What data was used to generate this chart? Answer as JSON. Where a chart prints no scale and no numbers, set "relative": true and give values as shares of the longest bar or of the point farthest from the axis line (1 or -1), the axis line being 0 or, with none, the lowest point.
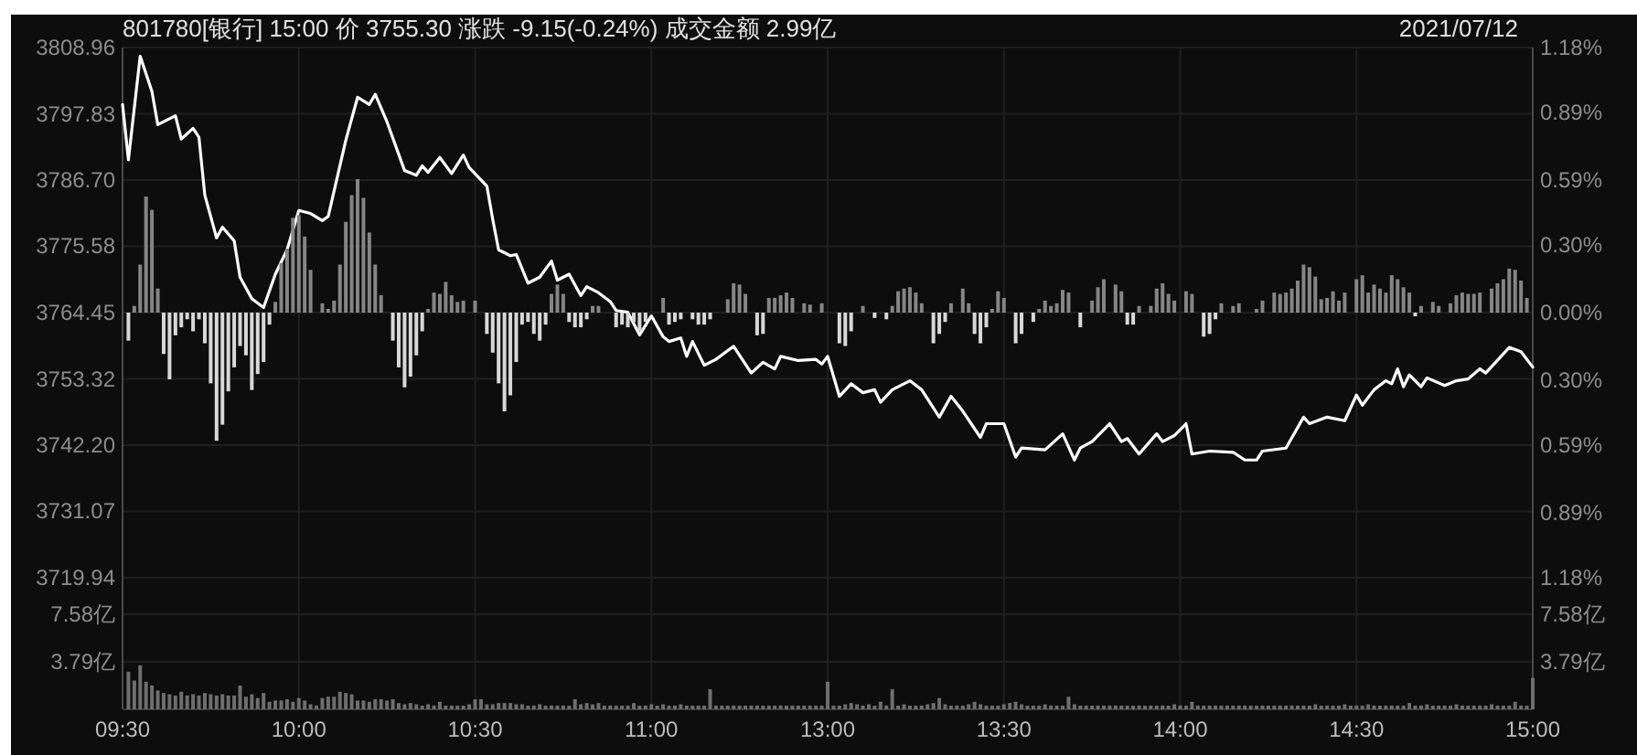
{
  "chart_data": [
    {
      "type": "line",
      "title": "801780[银行] 15:00  价 3755.30  涨跌 -9.15(-0.24%)  成交金额 2.99亿",
      "annotations": [
        "2021/07/12"
      ],
      "tick_labels": "y",
      "grid": "y",
      "categories": [
        null,
        null,
        null,
        null,
        null,
        null,
        null,
        null,
        null,
        null,
        null,
        null,
        null,
        null,
        null,
        null,
        null,
        null,
        null,
        null,
        null,
        null,
        null,
        null,
        null,
        null,
        null,
        null,
        null,
        null,
        null,
        null,
        null,
        null,
        null,
        null,
        null,
        null,
        null,
        null,
        null,
        null,
        null,
        null,
        null,
        null,
        null,
        null,
        null,
        null,
        null,
        null,
        null,
        null,
        null,
        null,
        null,
        null,
        null,
        null,
        null,
        null,
        null,
        null,
        null,
        null,
        null,
        null,
        null,
        null,
        null,
        null,
        null,
        null,
        null,
        null,
        null,
        null,
        null,
        null,
        null,
        null,
        null,
        null,
        null,
        null,
        null,
        null,
        null,
        null,
        null,
        null,
        null,
        null,
        null,
        null,
        null,
        null,
        null,
        null,
        null,
        null,
        null,
        null,
        null,
        null,
        null,
        null,
        null,
        null,
        null,
        null,
        null,
        null,
        null,
        null,
        null,
        null,
        null,
        null,
        null,
        null,
        null,
        null,
        null,
        null,
        null,
        null,
        null,
        null,
        null,
        null,
        null,
        null,
        null,
        null,
        null,
        null,
        null,
        null,
        null,
        null,
        null,
        null,
        null,
        null,
        null,
        null,
        null,
        null,
        null,
        null,
        null,
        null,
        null,
        null,
        null,
        null,
        null,
        null,
        null,
        null,
        null,
        null,
        null,
        null,
        null,
        null,
        null,
        null,
        null,
        null,
        null,
        null,
        null,
        null,
        null,
        null,
        null,
        null,
        null,
        null,
        null,
        null,
        null,
        null,
        null,
        null,
        null,
        null,
        null,
        null,
        null,
        null,
        null,
        null,
        null,
        null,
        null,
        null,
        null,
        null,
        null,
        null,
        null,
        null,
        null,
        null,
        null,
        null,
        null,
        null,
        null,
        null,
        null,
        null,
        null,
        null,
        null,
        null,
        null,
        null,
        null,
        null,
        null,
        null,
        null,
        null,
        null,
        null,
        null,
        null,
        null,
        null,
        null,
        null,
        null,
        null,
        null,
        null,
        null
      ],
      "ylim": [
        3719.94,
        3808.96
      ],
      "yticks": [
        3808.96,
        3797.83,
        {
          "value": 3786.7,
          "label": "3786.70"
        },
        3775.58,
        3764.45,
        3753.32,
        {
          "value": 3742.2,
          "label": "3742.20"
        },
        3731.07,
        3719.94
      ],
      "y2lim": [
        -1.18,
        1.18
      ],
      "y2ticks": [
        {
          "value": 1.18,
          "label": "1.18%"
        },
        {
          "value": 0.89,
          "label": "0.89%"
        },
        {
          "value": 0.59,
          "label": "0.59%"
        },
        {
          "value": 0.3,
          "label": "0.30%"
        },
        {
          "value": 0,
          "label": "0.00%"
        },
        {
          "value": -0.3,
          "label": "0.30%"
        },
        {
          "value": -0.59,
          "label": "0.59%"
        },
        {
          "value": -0.89,
          "label": "0.89%"
        },
        {
          "value": -1.18,
          "label": "1.18%"
        }
      ],
      "series": [
        {
          "color": "#ffffff",
          "values": [
            3799.4,
            3790.1,
            null,
            3807.5,
            null,
            3801.6,
            3796.0,
            null,
            3797.0,
            3797.5,
            3793.6,
            null,
            3795.4,
            3793.9,
            3784.2,
            null,
            3777.0,
            3778.8,
            null,
            3776.5,
            3770.4,
            null,
            3766.8,
            null,
            3765.3,
            null,
            3770.9,
            null,
            3775.0,
            null,
            3781.6,
            null,
            3781.1,
            null,
            3779.9,
            3780.6,
            null,
            null,
            3793.4,
            null,
            3800.6,
            null,
            3799.4,
            3801.1,
            null,
            3796.5,
            null,
            null,
            3788.3,
            null,
            3787.5,
            3789.1,
            3788.0,
            null,
            3790.5,
            null,
            3787.8,
            null,
            3790.9,
            3788.8,
            null,
            null,
            3785.7,
            3780.1,
            3775.0,
            null,
            3774.0,
            3774.2,
            null,
            3769.4,
            null,
            3770.4,
            null,
            3773.1,
            3769.9,
            null,
            3770.9,
            null,
            3767.3,
            3768.8,
            null,
            3767.8,
            null,
            3766.3,
            3764.8,
            null,
            3764.5,
            null,
            3760.7,
            null,
            3763.9,
            null,
            3760.4,
            3759.6,
            null,
            3760.2,
            3757.1,
            3759.6,
            null,
            3755.6,
            null,
            3756.6,
            null,
            null,
            3758.8,
            null,
            null,
            3754.3,
            null,
            3756.1,
            null,
            3755.0,
            3757.1,
            null,
            null,
            3756.4,
            null,
            null,
            3756.6,
            3755.8,
            3757.1,
            null,
            3750.4,
            null,
            3752.5,
            null,
            3751.0,
            null,
            3751.5,
            3749.4,
            null,
            3751.5,
            null,
            3752.5,
            3753.0,
            null,
            3751.5,
            null,
            null,
            3746.9,
            null,
            3750.4,
            null,
            3747.9,
            null,
            null,
            3743.5,
            3745.8,
            null,
            null,
            3745.8,
            null,
            3740.2,
            3741.7,
            null,
            null,
            null,
            3741.4,
            null,
            null,
            3744.1,
            null,
            3739.7,
            3741.7,
            null,
            3742.8,
            null,
            null,
            3745.8,
            null,
            3742.8,
            3743.3,
            null,
            3740.7,
            null,
            null,
            3744.1,
            3742.8,
            null,
            3743.8,
            null,
            3745.8,
            3740.7,
            null,
            null,
            3741.2,
            null,
            null,
            null,
            3741.0,
            null,
            3739.7,
            null,
            3739.7,
            3741.2,
            null,
            null,
            null,
            3741.7,
            null,
            null,
            3746.9,
            3745.8,
            null,
            null,
            3746.9,
            null,
            null,
            3746.3,
            null,
            3750.6,
            3748.9,
            null,
            3751.5,
            null,
            3753.0,
            3752.5,
            3755.0,
            3752.0,
            3754.0,
            null,
            3752.0,
            3753.5,
            null,
            null,
            3752.2,
            null,
            3753.0,
            null,
            3753.3,
            null,
            3755.0,
            3754.3,
            null,
            null,
            null,
            3758.6,
            null,
            3757.9,
            null,
            3755.3
          ]
        }
      ]
    },
    {
      "type": "bar",
      "relative": true,
      "tick_labels": false,
      "categories": [
        null,
        null,
        null,
        null,
        null,
        null,
        null,
        null,
        null,
        null,
        null,
        null,
        null,
        null,
        null,
        null,
        null,
        null,
        null,
        null,
        null,
        null,
        null,
        null,
        null,
        null,
        null,
        null,
        null,
        null,
        null,
        null,
        null,
        null,
        null,
        null,
        null,
        null,
        null,
        null,
        null,
        null,
        null,
        null,
        null,
        null,
        null,
        null,
        null,
        null,
        null,
        null,
        null,
        null,
        null,
        null,
        null,
        null,
        null,
        null,
        null,
        null,
        null,
        null,
        null,
        null,
        null,
        null,
        null,
        null,
        null,
        null,
        null,
        null,
        null,
        null,
        null,
        null,
        null,
        null,
        null,
        null,
        null,
        null,
        null,
        null,
        null,
        null,
        null,
        null,
        null,
        null,
        null,
        null,
        null,
        null,
        null,
        null,
        null,
        null,
        null,
        null,
        null,
        null,
        null,
        null,
        null,
        null,
        null,
        null,
        null,
        null,
        null,
        null,
        null,
        null,
        null,
        null,
        null,
        null,
        null,
        null,
        null,
        null,
        null,
        null,
        null,
        null,
        null,
        null,
        null,
        null,
        null,
        null,
        null,
        null,
        null,
        null,
        null,
        null,
        null,
        null,
        null,
        null,
        null,
        null,
        null,
        null,
        null,
        null,
        null,
        null,
        null,
        null,
        null,
        null,
        null,
        null,
        null,
        null,
        null,
        null,
        null,
        null,
        null,
        null,
        null,
        null,
        null,
        null,
        null,
        null,
        null,
        null,
        null,
        null,
        null,
        null,
        null,
        null,
        null,
        null,
        null,
        null,
        null,
        null,
        null,
        null,
        null,
        null,
        null,
        null,
        null,
        null,
        null,
        null,
        null,
        null,
        null,
        null,
        null,
        null,
        null,
        null,
        null,
        null,
        null,
        null,
        null,
        null,
        null,
        null,
        null,
        null,
        null,
        null,
        null,
        null,
        null,
        null,
        null,
        null,
        null,
        null,
        null,
        null,
        null,
        null,
        null,
        null,
        null,
        null,
        null,
        null,
        null,
        null,
        null,
        null,
        null,
        null,
        null
      ],
      "series": [
        {
          "color": "#858585",
          "values": [
            0,
            0,
            0.05,
            0.36,
            0.87,
            0.77,
            0.18,
            0,
            0,
            0,
            0,
            0,
            0,
            0,
            0,
            0,
            0,
            0,
            0,
            0,
            0,
            0,
            0,
            0,
            0,
            0,
            0.08,
            0.37,
            0.48,
            0.71,
            0.73,
            0.57,
            0.32,
            0,
            0.07,
            0.02,
            0.09,
            0.36,
            0.68,
            0.88,
            1,
            0.86,
            0.6,
            0.36,
            0.13,
            0,
            0,
            0,
            0,
            0,
            0,
            0,
            0.02,
            0.15,
            0.14,
            0.23,
            0.13,
            0.08,
            0.09,
            0,
            0.09,
            0,
            0,
            0,
            0,
            0,
            0,
            0,
            0,
            0,
            0,
            0,
            0,
            0.14,
            0.21,
            0.14,
            0,
            0,
            0,
            0,
            0.05,
            0.05,
            0,
            0,
            0,
            0,
            0,
            0,
            0,
            0,
            0,
            0,
            0.11,
            0,
            0,
            0,
            0,
            0,
            0,
            0,
            0,
            0,
            0,
            0.1,
            0.22,
            0.21,
            0.14,
            0,
            0,
            0,
            0.11,
            0.11,
            0.13,
            0.15,
            0.11,
            0,
            0.07,
            0.06,
            0,
            0.07,
            0,
            0,
            0,
            0,
            0,
            0,
            0.05,
            0,
            0,
            0,
            0,
            0.05,
            0.16,
            0.18,
            0.19,
            0.15,
            0.07,
            0,
            0,
            0,
            0,
            0.07,
            0,
            0.18,
            0.07,
            0,
            0,
            0,
            0.02,
            0.16,
            0.11,
            0,
            0,
            0,
            0,
            0,
            0.02,
            0.09,
            0.05,
            0.07,
            0.17,
            0.15,
            0,
            0,
            0,
            0.09,
            0.19,
            0.25,
            0,
            0.21,
            0.16,
            0,
            0,
            0.05,
            0,
            0.05,
            0.18,
            0.22,
            0.14,
            0.09,
            0,
            0.16,
            0.14,
            0,
            0,
            0,
            0,
            0.07,
            0,
            0.05,
            0.07,
            0,
            0,
            0.02,
            0.09,
            0,
            0.15,
            0.14,
            0.15,
            0.18,
            0.24,
            0.36,
            0.34,
            0.27,
            0.1,
            0.11,
            0.16,
            0.09,
            0.15,
            0,
            0.25,
            0.28,
            0.15,
            0.21,
            0.18,
            0.15,
            0.28,
            0.25,
            0.19,
            0.15,
            0,
            0.05,
            0,
            0.08,
            0.05,
            0,
            0.07,
            0.13,
            0.15,
            0.14,
            0.14,
            0.15,
            0,
            0.18,
            0.22,
            0.25,
            0.33,
            0.32,
            0.24,
            0.11,
            0
          ]
        },
        {
          "color": "#d8d8d8",
          "values": [
            0,
            -0.21,
            0,
            0,
            0,
            0,
            0,
            -0.31,
            -0.5,
            -0.17,
            -0.11,
            -0.05,
            -0.14,
            -0.05,
            -0.23,
            -0.53,
            -0.96,
            -0.84,
            -0.59,
            -0.41,
            -0.25,
            -0.32,
            -0.58,
            -0.46,
            -0.37,
            -0.09,
            0,
            0,
            0,
            0,
            0,
            0,
            0,
            0,
            0,
            0,
            0,
            0,
            0,
            0,
            0,
            0,
            0,
            0,
            0,
            0,
            -0.21,
            -0.41,
            -0.56,
            -0.48,
            -0.32,
            -0.14,
            0,
            0,
            0,
            0,
            0,
            0,
            0,
            0,
            0,
            0,
            -0.16,
            -0.3,
            -0.53,
            -0.74,
            -0.62,
            -0.37,
            -0.09,
            -0.07,
            -0.16,
            -0.21,
            -0.09,
            0,
            0,
            0,
            -0.07,
            -0.11,
            -0.11,
            -0.05,
            0,
            0,
            0,
            0,
            -0.11,
            -0.09,
            -0.11,
            -0.07,
            -0.14,
            -0.07,
            0,
            0,
            0,
            -0.09,
            -0.07,
            -0.05,
            0,
            -0.05,
            -0.09,
            -0.09,
            -0.05,
            0,
            0,
            0,
            0,
            0,
            0,
            0,
            -0.17,
            -0.16,
            0,
            0,
            0,
            0,
            0,
            0,
            0,
            0,
            0,
            0,
            0,
            0,
            -0.23,
            -0.25,
            -0.14,
            0,
            0,
            0,
            -0.04,
            0,
            -0.05,
            0,
            0,
            0,
            0,
            0,
            0,
            0,
            -0.23,
            -0.16,
            -0.07,
            0,
            0,
            0,
            0,
            -0.16,
            -0.23,
            -0.11,
            0,
            0,
            0,
            0,
            -0.23,
            -0.16,
            0,
            -0.07,
            0,
            0,
            0,
            0,
            0,
            0,
            0,
            -0.11,
            0,
            0,
            0,
            0,
            0,
            0,
            0,
            -0.09,
            -0.09,
            0,
            0,
            0,
            0,
            0,
            0,
            0,
            0,
            0,
            0,
            0,
            -0.18,
            -0.16,
            -0.05,
            0,
            0,
            0,
            0,
            0,
            0,
            0,
            0,
            0,
            0,
            0,
            0,
            0,
            0,
            0,
            0,
            0,
            0,
            0,
            0,
            0,
            0,
            0,
            0,
            0,
            0,
            0,
            0,
            0,
            0,
            0,
            0,
            0,
            -0.02,
            0,
            0,
            0,
            0,
            0,
            0,
            0,
            0,
            0,
            0,
            0,
            0,
            0,
            0,
            0,
            0,
            0,
            0,
            0,
            0
          ]
        }
      ]
    },
    {
      "type": "bar",
      "grid": true,
      "categories": [
        "09:30",
        null,
        null,
        null,
        null,
        null,
        null,
        null,
        null,
        null,
        null,
        null,
        null,
        null,
        null,
        null,
        null,
        null,
        null,
        null,
        null,
        null,
        null,
        null,
        null,
        null,
        null,
        null,
        null,
        null,
        "10:00",
        null,
        null,
        null,
        null,
        null,
        null,
        null,
        null,
        null,
        null,
        null,
        null,
        null,
        null,
        null,
        null,
        null,
        null,
        null,
        null,
        null,
        null,
        null,
        null,
        null,
        null,
        null,
        null,
        null,
        "10:30",
        null,
        null,
        null,
        null,
        null,
        null,
        null,
        null,
        null,
        null,
        null,
        null,
        null,
        null,
        null,
        null,
        null,
        null,
        null,
        null,
        null,
        null,
        null,
        null,
        null,
        null,
        null,
        null,
        null,
        "11:00",
        null,
        null,
        null,
        null,
        null,
        null,
        null,
        null,
        null,
        null,
        null,
        null,
        null,
        null,
        null,
        null,
        null,
        null,
        null,
        null,
        null,
        null,
        null,
        null,
        null,
        null,
        null,
        null,
        null,
        "13:00",
        null,
        null,
        null,
        null,
        null,
        null,
        null,
        null,
        null,
        null,
        null,
        null,
        null,
        null,
        null,
        null,
        null,
        null,
        null,
        null,
        null,
        null,
        null,
        null,
        null,
        null,
        null,
        null,
        null,
        "13:30",
        null,
        null,
        null,
        null,
        null,
        null,
        null,
        null,
        null,
        null,
        null,
        null,
        null,
        null,
        null,
        null,
        null,
        null,
        null,
        null,
        null,
        null,
        null,
        null,
        null,
        null,
        null,
        null,
        null,
        "14:00",
        null,
        null,
        null,
        null,
        null,
        null,
        null,
        null,
        null,
        null,
        null,
        null,
        null,
        null,
        null,
        null,
        null,
        null,
        null,
        null,
        null,
        null,
        null,
        null,
        null,
        null,
        null,
        null,
        null,
        "14:30",
        null,
        null,
        null,
        null,
        null,
        null,
        null,
        null,
        null,
        null,
        null,
        null,
        null,
        null,
        null,
        null,
        null,
        null,
        null,
        null,
        null,
        null,
        null,
        null,
        null,
        null,
        null,
        null,
        null,
        "15:00"
      ],
      "ylim": [
        0,
        10.5
      ],
      "yticks": [
        {
          "value": 3.79,
          "label": "3.79亿"
        },
        {
          "value": 7.58,
          "label": "7.58亿"
        }
      ],
      "y2lim": [
        0,
        10.5
      ],
      "y2ticks": [
        {
          "value": 3.79,
          "label": "3.79亿"
        },
        {
          "value": 7.58,
          "label": "7.58亿"
        }
      ],
      "series": [
        {
          "color": "#6e6e6e",
          "values": [
            0,
            3.0,
            2.3,
            3.5,
            2.2,
            1.9,
            1.5,
            1.3,
            1.2,
            1.1,
            1.4,
            1.1,
            1.2,
            1.1,
            1.3,
            1.2,
            1.1,
            1.2,
            1.1,
            1.1,
            1.9,
            1.0,
            1.2,
            0.9,
            1.3,
            0.6,
            0.7,
            0.7,
            0.8,
            0.6,
            0.9,
            0.7,
            0.4,
            0.3,
            0.9,
            1.0,
            1.0,
            1.4,
            1.3,
            1.2,
            0.7,
            0.7,
            0.6,
            0.8,
            0.8,
            0.7,
            0.8,
            0.5,
            0.4,
            0.5,
            0.4,
            0.2,
            0.4,
            0.3,
            0.6,
            0.2,
            0.2,
            0.2,
            0.2,
            0.4,
            0.8,
            0.8,
            0.4,
            0.4,
            0.5,
            0.5,
            0.5,
            0.4,
            0.4,
            0.2,
            0.3,
            0.4,
            0.2,
            0.3,
            0.2,
            0.3,
            0.2,
            0.8,
            0.4,
            0.5,
            0.4,
            0.5,
            0.2,
            0.3,
            0.2,
            0.1,
            0.3,
            0.5,
            0.2,
            0.3,
            0.4,
            0.2,
            0.4,
            0.2,
            0.3,
            0.4,
            0.3,
            0.2,
            0.1,
            0.2,
            1.6,
            0.3,
            0.2,
            0.1,
            0.3,
            0.2,
            0.1,
            0.2,
            0.3,
            0.2,
            0.2,
            0.1,
            0.3,
            0.2,
            0.2,
            0.2,
            0.1,
            0.2,
            0.2,
            0.2,
            2.2,
            0.2,
            0.2,
            0.4,
            0.5,
            0.4,
            0.3,
            0.4,
            0.2,
            0.6,
            0.3,
            1.6,
            0.2,
            0.4,
            0.1,
            0.2,
            0.3,
            0.4,
            0.5,
            0.9,
            0.4,
            0.2,
            0.3,
            0.2,
            0.4,
            0.6,
            0.4,
            0.1,
            0.2,
            0.2,
            0.4,
            0.5,
            0.6,
            0.4,
            0.2,
            0.2,
            0.3,
            0.4,
            0.3,
            0.3,
            0.2,
            1.0,
            0.4,
            0.2,
            0.2,
            0.2,
            0.3,
            0.2,
            0.2,
            0.3,
            0.2,
            0.2,
            0.2,
            0.3,
            0.2,
            0.2,
            0.2,
            0.3,
            0.2,
            0.4,
            0.3,
            0.2,
            0.6,
            0.3,
            0.2,
            0.2,
            0.3,
            0.2,
            0.2,
            0.2,
            0.3,
            0.2,
            0.2,
            0.2,
            0.3,
            0.2,
            0.2,
            0.2,
            0.2,
            0.3,
            0.2,
            0.2,
            0.2,
            0.4,
            0.2,
            0.3,
            0.2,
            0.2,
            0.4,
            0.2,
            0.3,
            0.2,
            0.4,
            0.3,
            0.2,
            0.2,
            0.3,
            0.2,
            0.2,
            0.5,
            0.2,
            0.3,
            0.4,
            0.2,
            0.2,
            0.3,
            0.2,
            0.4,
            0.3,
            0.2,
            0.2,
            0.3,
            0.2,
            0.4,
            0.3,
            0.2,
            0.2,
            0.6,
            0.3,
            0.2,
            2.5
          ]
        }
      ]
    }
  ]
}
